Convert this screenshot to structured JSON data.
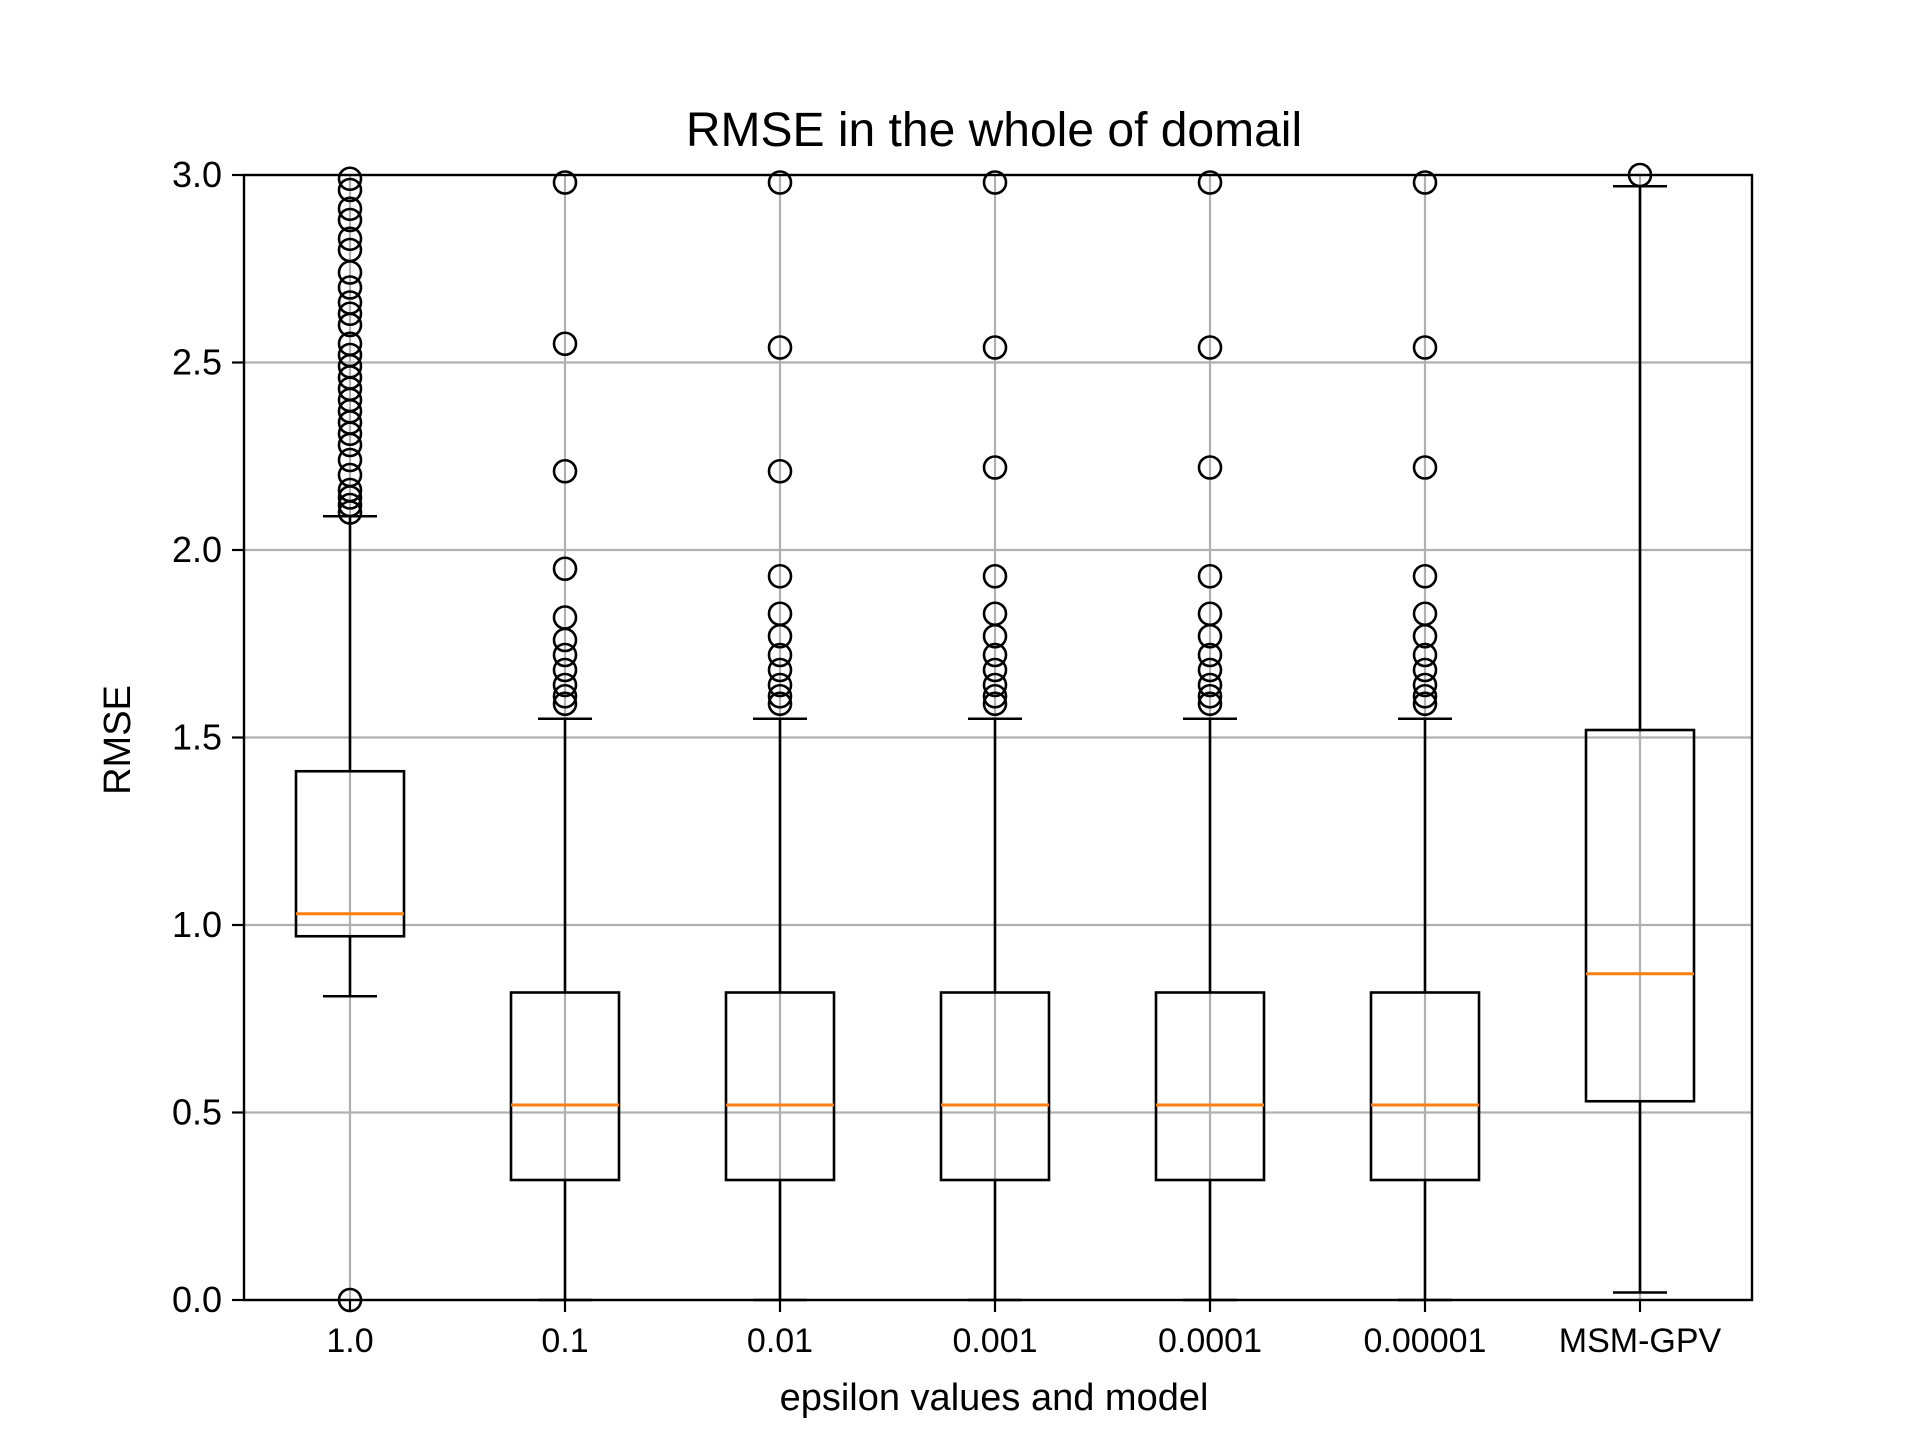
{
  "chart_data": {
    "type": "box",
    "title": "RMSE in the whole of domail",
    "xlabel": "epsilon values and model",
    "ylabel": "RMSE",
    "ylim": [
      0.0,
      3.0
    ],
    "yticks": [
      "0.0",
      "0.5",
      "1.0",
      "1.5",
      "2.0",
      "2.5",
      "3.0"
    ],
    "grid": true,
    "categories": [
      "1.0",
      "0.1",
      "0.01",
      "0.001",
      "0.0001",
      "0.00001",
      "MSM-GPV"
    ],
    "boxes": [
      {
        "label": "1.0",
        "whisker_low": 0.81,
        "q1": 0.97,
        "median": 1.03,
        "q3": 1.41,
        "whisker_high": 2.09,
        "fliers": [
          0.0,
          2.1,
          2.12,
          2.14,
          2.16,
          2.2,
          2.24,
          2.28,
          2.31,
          2.34,
          2.37,
          2.4,
          2.43,
          2.46,
          2.49,
          2.52,
          2.55,
          2.6,
          2.63,
          2.66,
          2.7,
          2.74,
          2.8,
          2.83,
          2.88,
          2.91,
          2.96,
          2.99
        ]
      },
      {
        "label": "0.1",
        "whisker_low": 0.0,
        "q1": 0.32,
        "median": 0.52,
        "q3": 0.82,
        "whisker_high": 1.55,
        "fliers": [
          1.59,
          1.61,
          1.64,
          1.68,
          1.72,
          1.76,
          1.82,
          1.95,
          2.21,
          2.55,
          2.98
        ]
      },
      {
        "label": "0.01",
        "whisker_low": 0.0,
        "q1": 0.32,
        "median": 0.52,
        "q3": 0.82,
        "whisker_high": 1.55,
        "fliers": [
          1.59,
          1.61,
          1.64,
          1.68,
          1.72,
          1.77,
          1.83,
          1.93,
          2.21,
          2.54,
          2.98
        ]
      },
      {
        "label": "0.001",
        "whisker_low": 0.0,
        "q1": 0.32,
        "median": 0.52,
        "q3": 0.82,
        "whisker_high": 1.55,
        "fliers": [
          1.59,
          1.61,
          1.64,
          1.68,
          1.72,
          1.77,
          1.83,
          1.93,
          2.22,
          2.54,
          2.98
        ]
      },
      {
        "label": "0.0001",
        "whisker_low": 0.0,
        "q1": 0.32,
        "median": 0.52,
        "q3": 0.82,
        "whisker_high": 1.55,
        "fliers": [
          1.59,
          1.61,
          1.64,
          1.68,
          1.72,
          1.77,
          1.83,
          1.93,
          2.22,
          2.54,
          2.98
        ]
      },
      {
        "label": "0.00001",
        "whisker_low": 0.0,
        "q1": 0.32,
        "median": 0.52,
        "q3": 0.82,
        "whisker_high": 1.55,
        "fliers": [
          1.59,
          1.61,
          1.64,
          1.68,
          1.72,
          1.77,
          1.83,
          1.93,
          2.22,
          2.54,
          2.98
        ]
      },
      {
        "label": "MSM-GPV",
        "whisker_low": 0.02,
        "q1": 0.53,
        "median": 0.87,
        "q3": 1.52,
        "whisker_high": 2.97,
        "fliers": [
          3.0
        ]
      }
    ],
    "colors": {
      "box": "#000000",
      "median": "#ff7f0e",
      "grid": "#b0b0b0",
      "background": "#ffffff"
    }
  }
}
